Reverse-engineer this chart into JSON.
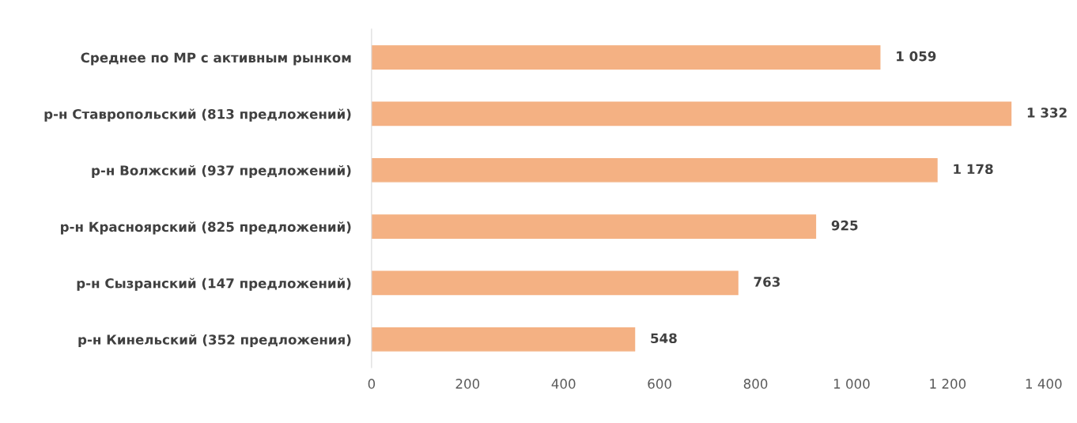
{
  "chart_data": {
    "type": "bar",
    "orientation": "horizontal",
    "categories": [
      "Среднее по МР с активным рынком",
      "р-н Ставропольский (813 предложений)",
      "р-н Волжский (937 предложений)",
      "р-н Красноярский (825 предложений)",
      "р-н Сызранский (147 предложений)",
      "р-н Кинельский (352 предложения)"
    ],
    "values": [
      1059,
      1332,
      1178,
      925,
      763,
      548
    ],
    "value_labels": [
      "1 059",
      "1 332",
      "1 178",
      "925",
      "763",
      "548"
    ],
    "color": "#f4b183",
    "xlim": [
      0,
      1400
    ],
    "xticks": [
      0,
      200,
      400,
      600,
      800,
      {
        "value": 1000,
        "label": "1 000"
      },
      {
        "value": 1200,
        "label": "1 200"
      },
      {
        "value": 1400,
        "label": "1 400"
      }
    ],
    "grid": false
  }
}
